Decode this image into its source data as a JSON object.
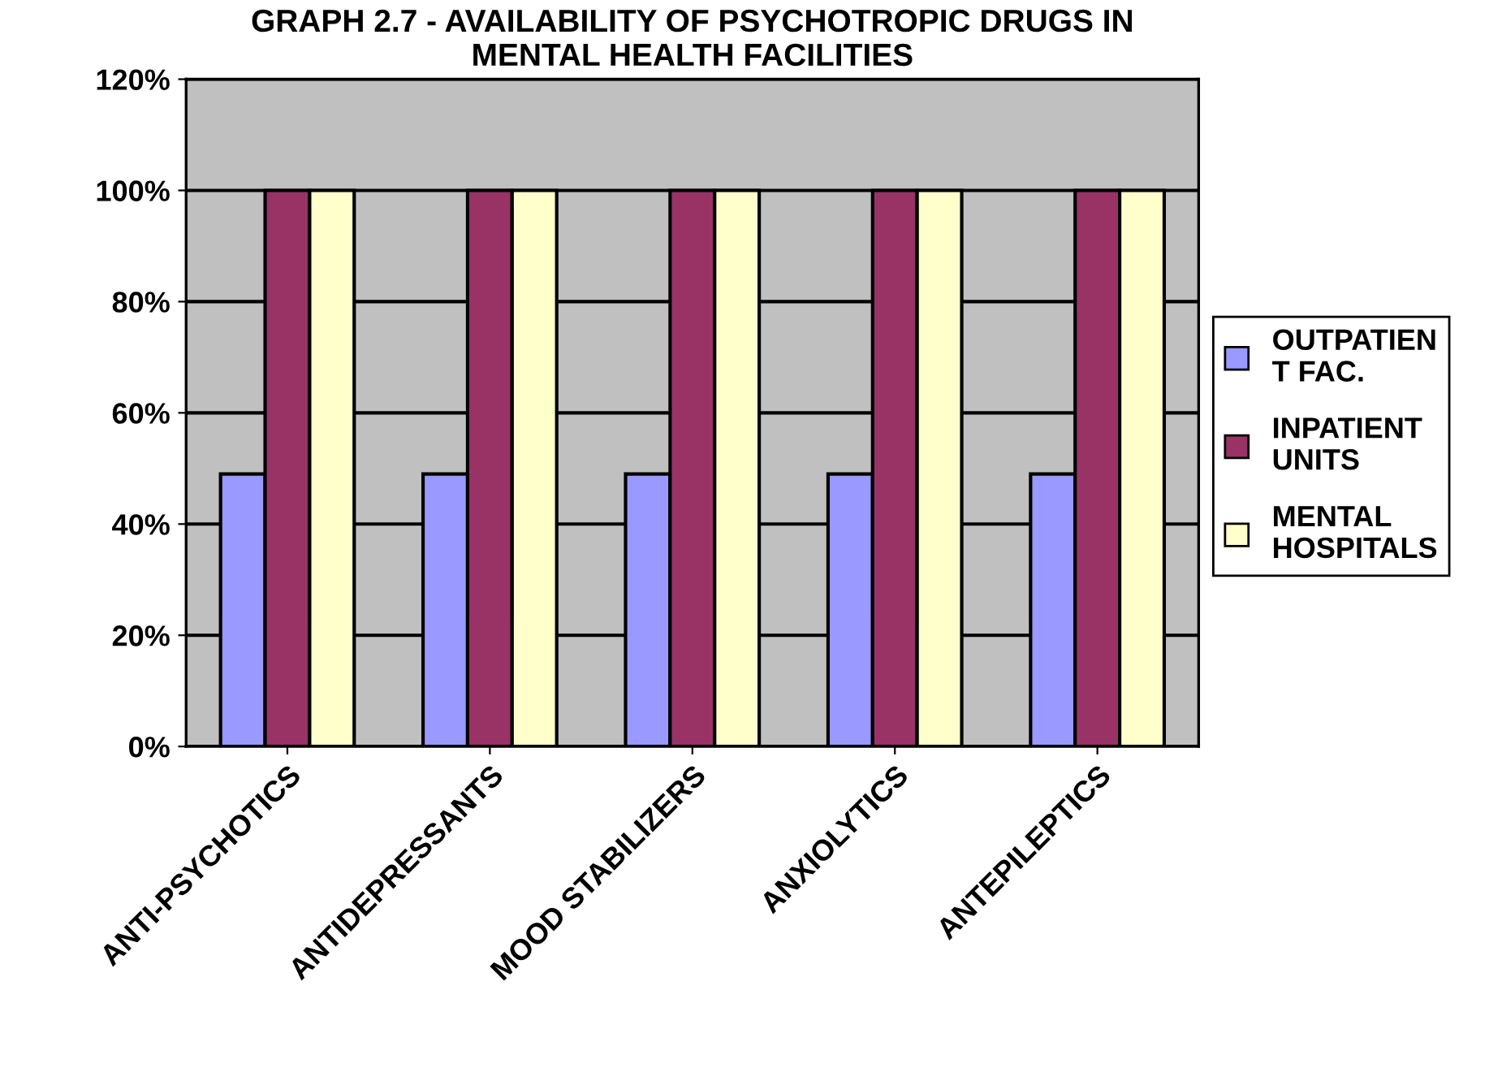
{
  "chart_data": {
    "type": "bar",
    "title": "GRAPH 2.7 - AVAILABILITY OF PSYCHOTROPIC DRUGS IN\nMENTAL HEALTH FACILITIES",
    "categories": [
      "ANTI-PSYCHOTICS",
      "ANTIDEPRESSANTS",
      "MOOD STABILIZERS",
      "ANXIOLYTICS",
      "ANTEPILEPTICS"
    ],
    "series": [
      {
        "name": "OUTPATIEN\nT FAC.",
        "color": "#9999ff",
        "values": [
          49,
          49,
          49,
          49,
          49
        ]
      },
      {
        "name": "INPATIENT\nUNITS",
        "color": "#993366",
        "values": [
          100,
          100,
          100,
          100,
          100
        ]
      },
      {
        "name": "MENTAL\nHOSPITALS",
        "color": "#ffffcc",
        "values": [
          100,
          100,
          100,
          100,
          100
        ]
      }
    ],
    "ylim": [
      0,
      120
    ],
    "yticks": [
      {
        "value": 0,
        "label": "0%"
      },
      {
        "value": 20,
        "label": "20%"
      },
      {
        "value": 40,
        "label": "40%"
      },
      {
        "value": 60,
        "label": "60%"
      },
      {
        "value": 80,
        "label": "80%"
      },
      {
        "value": 100,
        "label": "100%"
      },
      {
        "value": 120,
        "label": "120%"
      }
    ],
    "grid": "y",
    "legend": "right"
  }
}
